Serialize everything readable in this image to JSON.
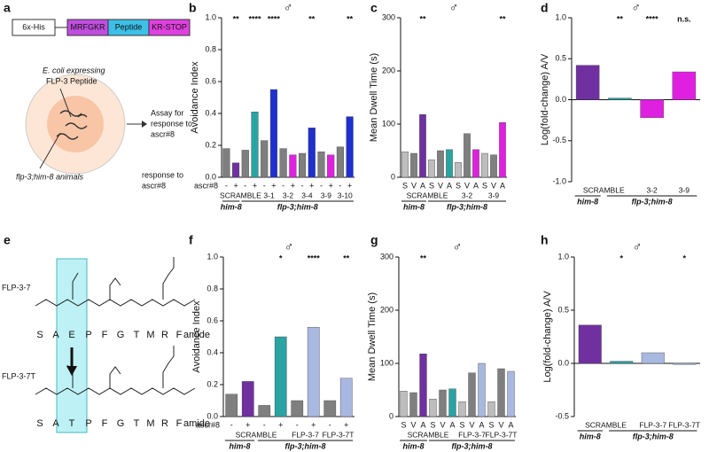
{
  "panel_labels": [
    "a",
    "b",
    "c",
    "d",
    "e",
    "f",
    "g",
    "h"
  ],
  "construct": {
    "boxes": [
      "6x-His",
      "MRFGKR",
      "Peptide",
      "KR-STOP"
    ]
  },
  "assay": {
    "source": [
      "E. coli expressing",
      "FLP-3 Peptide"
    ],
    "arrow_text": [
      "Assay for",
      "response to",
      "ascr#8"
    ],
    "animals": "flp-3;him-8 animals",
    "note": [
      "response to",
      "ascr#8"
    ]
  },
  "peptides": [
    {
      "name": "FLP-3-7",
      "sequence": [
        "S",
        "A",
        "E",
        "P",
        "F",
        "G",
        "T",
        "M",
        "R",
        "F",
        "amide"
      ]
    },
    {
      "name": "FLP-3-7T",
      "sequence": [
        "S",
        "A",
        "T",
        "P",
        "F",
        "G",
        "T",
        "M",
        "R",
        "F",
        "amide"
      ]
    }
  ],
  "chart_data": [
    {
      "type": "bar",
      "symbol": "♂",
      "ylabel": "Avoidance Index",
      "ylim": [
        0,
        1
      ],
      "yticks": [
        {
          "value": 0,
          "label": "0.0"
        },
        0.2,
        0.4,
        0.6,
        0.8,
        {
          "value": 1,
          "label": "1.0"
        }
      ],
      "row_label": "ascr#8",
      "categories": [
        "-",
        "+",
        "-",
        "+",
        "-",
        "+",
        "-",
        "+",
        "-",
        "+",
        "-",
        "+",
        "-",
        "+"
      ],
      "values": [
        0.18,
        0.09,
        0.17,
        0.41,
        0.23,
        0.55,
        0.18,
        0.14,
        0.15,
        0.31,
        0.16,
        0.14,
        0.19,
        0.38
      ],
      "colors": [
        "#7f7f7f",
        "#7030a0",
        "#7f7f7f",
        "#2aa3a3",
        "#7f7f7f",
        "#1f30d0",
        "#7f7f7f",
        "#e020e0",
        "#7f7f7f",
        "#1f30d0",
        "#7f7f7f",
        "#e020e0",
        "#7f7f7f",
        "#1f30d0"
      ],
      "significance": [
        null,
        "**",
        null,
        "****",
        null,
        "****",
        null,
        null,
        null,
        "**",
        null,
        null,
        null,
        "**"
      ],
      "groups": [
        "SCRAMBLE",
        "3-1",
        "3-2",
        "3-4",
        "3-9",
        "3-10"
      ],
      "strains": [
        "him-8",
        "flp-3;him-8"
      ]
    },
    {
      "type": "bar",
      "symbol": "♂",
      "ylabel": "Mean Dwell Time (s)",
      "ylim": [
        0,
        300
      ],
      "yticks": [
        0,
        100,
        200,
        300
      ],
      "categories": [
        "S",
        "V",
        "A",
        "S",
        "V",
        "A",
        "S",
        "V",
        "A",
        "S",
        "V",
        "A"
      ],
      "values": [
        48,
        45,
        118,
        33,
        50,
        52,
        28,
        82,
        52,
        45,
        42,
        103
      ],
      "colors": [
        "#bdbdbd",
        "#7f7f7f",
        "#7030a0",
        "#bdbdbd",
        "#7f7f7f",
        "#2aa3a3",
        "#bdbdbd",
        "#7f7f7f",
        "#e020e0",
        "#bdbdbd",
        "#7f7f7f",
        "#e020e0"
      ],
      "significance": [
        null,
        null,
        "**",
        null,
        null,
        null,
        null,
        null,
        null,
        null,
        null,
        "**"
      ],
      "groups": [
        "SCRAMBLE",
        "3-2",
        "3-9"
      ],
      "strains": [
        "him-8",
        "flp-3;him-8"
      ]
    },
    {
      "type": "bar",
      "symbol": "♂",
      "ylabel": "Log(fold-change) A/V",
      "ylim": [
        -1,
        1
      ],
      "yticks": [
        {
          "value": -1,
          "label": "-1.0"
        },
        -0.5,
        {
          "value": 0,
          "label": "0.0"
        },
        0.5,
        {
          "value": 1,
          "label": "1.0"
        }
      ],
      "values": [
        0.42,
        0.02,
        -0.22,
        0.34
      ],
      "colors": [
        "#7030a0",
        "#2aa3a3",
        "#e020e0",
        "#e020e0"
      ],
      "significance": [
        null,
        "**",
        "****",
        "n.s."
      ],
      "groups": [
        "SCRAMBLE",
        "3-2",
        "3-9"
      ],
      "strains": [
        "him-8",
        "flp-3;him-8"
      ]
    },
    {
      "type": "bar",
      "symbol": "♂",
      "ylabel": "Avoidance Index",
      "ylim": [
        0,
        1
      ],
      "yticks": [
        {
          "value": 0,
          "label": "0.0"
        },
        0.2,
        0.4,
        0.6,
        0.8,
        {
          "value": 1,
          "label": "1.0"
        }
      ],
      "row_label": "ascr#8",
      "categories": [
        "-",
        "+",
        "-",
        "+",
        "-",
        "+",
        "-",
        "+"
      ],
      "values": [
        0.14,
        0.22,
        0.07,
        0.5,
        0.1,
        0.56,
        0.1,
        0.24
      ],
      "colors": [
        "#7f7f7f",
        "#7030a0",
        "#7f7f7f",
        "#2aa3a3",
        "#7f7f7f",
        "#a9b8e0",
        "#7f7f7f",
        "#a9b8e0"
      ],
      "significance": [
        null,
        null,
        null,
        "*",
        null,
        "****",
        null,
        "**"
      ],
      "groups": [
        "SCRAMBLE",
        "FLP-3-7",
        "FLP-3-7T"
      ],
      "strains": [
        "him-8",
        "flp-3;him-8"
      ]
    },
    {
      "type": "bar",
      "symbol": "♂",
      "ylabel": "Mean Dwell Time (s)",
      "ylim": [
        0,
        300
      ],
      "yticks": [
        0,
        100,
        200,
        300
      ],
      "categories": [
        "S",
        "V",
        "A",
        "S",
        "V",
        "A",
        "S",
        "V",
        "A",
        "S",
        "V",
        "A"
      ],
      "values": [
        48,
        45,
        118,
        33,
        50,
        52,
        28,
        82,
        100,
        28,
        90,
        85
      ],
      "colors": [
        "#bdbdbd",
        "#7f7f7f",
        "#7030a0",
        "#bdbdbd",
        "#7f7f7f",
        "#2aa3a3",
        "#bdbdbd",
        "#7f7f7f",
        "#a9b8e0",
        "#bdbdbd",
        "#7f7f7f",
        "#a9b8e0"
      ],
      "significance": [
        null,
        null,
        "**",
        null,
        null,
        null,
        null,
        null,
        null,
        null,
        null,
        null
      ],
      "groups": [
        "SCRAMBLE",
        "FLP-3-7",
        "FLP-3-7T"
      ],
      "strains": [
        "him-8",
        "flp-3;him-8"
      ]
    },
    {
      "type": "bar",
      "symbol": "♂",
      "ylabel": "Log(fold-change) A/V",
      "ylim": [
        -0.5,
        1
      ],
      "yticks": [
        -0.5,
        {
          "value": 0,
          "label": "0.0"
        },
        0.5,
        {
          "value": 1,
          "label": "1.0"
        }
      ],
      "values": [
        0.36,
        0.02,
        0.1,
        -0.01
      ],
      "colors": [
        "#7030a0",
        "#2aa3a3",
        "#a9b8e0",
        "#a9b8e0"
      ],
      "significance": [
        null,
        "*",
        null,
        "*"
      ],
      "groups": [
        "SCRAMBLE",
        "FLP-3-7",
        "FLP-3-7T"
      ],
      "strains": [
        "him-8",
        "flp-3;him-8"
      ]
    }
  ]
}
